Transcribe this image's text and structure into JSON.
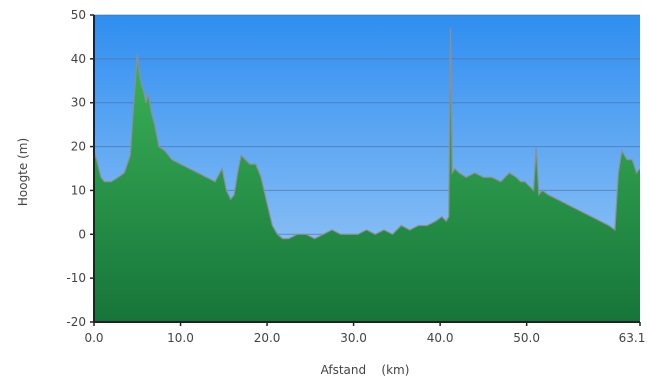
{
  "chart_data": {
    "type": "area",
    "title": "",
    "xlabel": "Afstand    (km)",
    "ylabel": "Hoogte (m)",
    "xlim": [
      0,
      63.1
    ],
    "ylim": [
      -20,
      50
    ],
    "x_ticks": [
      0.0,
      10.0,
      20.0,
      30.0,
      40.0,
      50.0,
      63.1
    ],
    "x_tick_labels": [
      "0.0",
      "10.0",
      "20.0",
      "30.0",
      "40.0",
      "50.0",
      "63.1"
    ],
    "y_ticks": [
      -20,
      -10,
      0,
      10,
      20,
      30,
      40,
      50
    ],
    "y_tick_labels": [
      "-20",
      "-10",
      "0",
      "10",
      "20",
      "30",
      "40",
      "50"
    ],
    "grid": true,
    "colors": {
      "sky_top": "#2f8ef0",
      "sky_bottom": "#a4cdf7",
      "fill_top": "#3fb85a",
      "fill_bottom": "#16753a",
      "profile_line": "#8f8f8f",
      "grid": "#4a6f99"
    },
    "series": [
      {
        "x": [
          0,
          0.3,
          0.8,
          1.2,
          2,
          2.8,
          3.5,
          4.2,
          4.6,
          5.0,
          5.3,
          5.5,
          5.7,
          6.0,
          6.3,
          6.6,
          7.0,
          7.5,
          8.2,
          8.6,
          9,
          10,
          11,
          12,
          13,
          14,
          14.8,
          15.3,
          15.8,
          16.2,
          16.6,
          17,
          17.5,
          18,
          18.7,
          19.3,
          20,
          20.6,
          21.2,
          21.8,
          22.5,
          23.5,
          24.5,
          25.5,
          26.5,
          27.5,
          28.5,
          29.5,
          30.5,
          31.5,
          32.5,
          33.5,
          34.5,
          35.5,
          36.5,
          37.5,
          38.5,
          39.5,
          40.2,
          40.7,
          41.0,
          41.2,
          41.4,
          41.7,
          42.2,
          43,
          44,
          45,
          46,
          47,
          48,
          48.8,
          49.3,
          49.8,
          50.3,
          50.8,
          51.1,
          51.4,
          51.8,
          52.5,
          53.5,
          54.5,
          55.5,
          56.5,
          57.5,
          58.5,
          59.5,
          60.2,
          60.6,
          61,
          61.6,
          62.2,
          62.7,
          63.1
        ],
        "y": [
          19,
          17,
          13,
          12,
          12,
          13,
          14,
          18,
          30,
          41,
          36,
          34,
          33,
          30,
          32,
          28,
          25,
          20,
          19,
          18,
          17,
          16,
          15,
          14,
          13,
          12,
          15,
          10,
          8,
          9,
          14,
          18,
          17,
          16,
          16,
          13,
          7,
          2,
          0,
          -1,
          -1,
          0,
          0,
          -1,
          0,
          1,
          0,
          0,
          0,
          1,
          0,
          1,
          0,
          2,
          1,
          2,
          2,
          3,
          4,
          3,
          4,
          47,
          14,
          15,
          14,
          13,
          14,
          13,
          13,
          12,
          14,
          13,
          12,
          12,
          11,
          10,
          20,
          9,
          10,
          9,
          8,
          7,
          6,
          5,
          4,
          3,
          2,
          1,
          14,
          19,
          17,
          17,
          14,
          15
        ]
      }
    ]
  }
}
